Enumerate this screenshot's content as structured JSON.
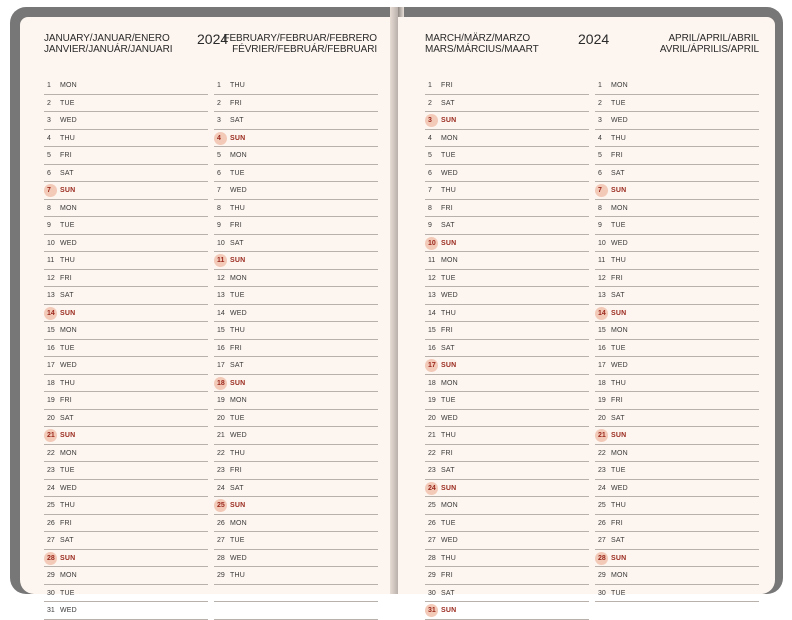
{
  "left_page": {
    "month_labels_left": [
      "JANUARY/JANUAR/ENERO",
      "JANVIER/JANUÁR/JANUARI"
    ],
    "year": "2024",
    "month_labels_right": [
      "FEBRUARY/FEBRUAR/FEBRERO",
      "FÉVRIER/FEBRUÁR/FEBRUARI"
    ],
    "columns": [
      {
        "month": "January",
        "days": [
          {
            "n": "1",
            "d": "MON"
          },
          {
            "n": "2",
            "d": "TUE"
          },
          {
            "n": "3",
            "d": "WED"
          },
          {
            "n": "4",
            "d": "THU"
          },
          {
            "n": "5",
            "d": "FRI"
          },
          {
            "n": "6",
            "d": "SAT"
          },
          {
            "n": "7",
            "d": "SUN"
          },
          {
            "n": "8",
            "d": "MON"
          },
          {
            "n": "9",
            "d": "TUE"
          },
          {
            "n": "10",
            "d": "WED"
          },
          {
            "n": "11",
            "d": "THU"
          },
          {
            "n": "12",
            "d": "FRI"
          },
          {
            "n": "13",
            "d": "SAT"
          },
          {
            "n": "14",
            "d": "SUN"
          },
          {
            "n": "15",
            "d": "MON"
          },
          {
            "n": "16",
            "d": "TUE"
          },
          {
            "n": "17",
            "d": "WED"
          },
          {
            "n": "18",
            "d": "THU"
          },
          {
            "n": "19",
            "d": "FRI"
          },
          {
            "n": "20",
            "d": "SAT"
          },
          {
            "n": "21",
            "d": "SUN"
          },
          {
            "n": "22",
            "d": "MON"
          },
          {
            "n": "23",
            "d": "TUE"
          },
          {
            "n": "24",
            "d": "WED"
          },
          {
            "n": "25",
            "d": "THU"
          },
          {
            "n": "26",
            "d": "FRI"
          },
          {
            "n": "27",
            "d": "SAT"
          },
          {
            "n": "28",
            "d": "SUN"
          },
          {
            "n": "29",
            "d": "MON"
          },
          {
            "n": "30",
            "d": "TUE"
          },
          {
            "n": "31",
            "d": "WED"
          }
        ]
      },
      {
        "month": "February",
        "days": [
          {
            "n": "1",
            "d": "THU"
          },
          {
            "n": "2",
            "d": "FRI"
          },
          {
            "n": "3",
            "d": "SAT"
          },
          {
            "n": "4",
            "d": "SUN"
          },
          {
            "n": "5",
            "d": "MON"
          },
          {
            "n": "6",
            "d": "TUE"
          },
          {
            "n": "7",
            "d": "WED"
          },
          {
            "n": "8",
            "d": "THU"
          },
          {
            "n": "9",
            "d": "FRI"
          },
          {
            "n": "10",
            "d": "SAT"
          },
          {
            "n": "11",
            "d": "SUN"
          },
          {
            "n": "12",
            "d": "MON"
          },
          {
            "n": "13",
            "d": "TUE"
          },
          {
            "n": "14",
            "d": "WED"
          },
          {
            "n": "15",
            "d": "THU"
          },
          {
            "n": "16",
            "d": "FRI"
          },
          {
            "n": "17",
            "d": "SAT"
          },
          {
            "n": "18",
            "d": "SUN"
          },
          {
            "n": "19",
            "d": "MON"
          },
          {
            "n": "20",
            "d": "TUE"
          },
          {
            "n": "21",
            "d": "WED"
          },
          {
            "n": "22",
            "d": "THU"
          },
          {
            "n": "23",
            "d": "FRI"
          },
          {
            "n": "24",
            "d": "SAT"
          },
          {
            "n": "25",
            "d": "SUN"
          },
          {
            "n": "26",
            "d": "MON"
          },
          {
            "n": "27",
            "d": "TUE"
          },
          {
            "n": "28",
            "d": "WED"
          },
          {
            "n": "29",
            "d": "THU"
          },
          {
            "n": "",
            "d": ""
          },
          {
            "n": "",
            "d": ""
          }
        ]
      }
    ]
  },
  "right_page": {
    "month_labels_left": [
      "MARCH/MÄRZ/MARZO",
      "MARS/MÁRCIUS/MAART"
    ],
    "year": "2024",
    "month_labels_right": [
      "APRIL/APRIL/ABRIL",
      "AVRIL/ÁPRILIS/APRIL"
    ],
    "columns": [
      {
        "month": "March",
        "days": [
          {
            "n": "1",
            "d": "FRI"
          },
          {
            "n": "2",
            "d": "SAT"
          },
          {
            "n": "3",
            "d": "SUN"
          },
          {
            "n": "4",
            "d": "MON"
          },
          {
            "n": "5",
            "d": "TUE"
          },
          {
            "n": "6",
            "d": "WED"
          },
          {
            "n": "7",
            "d": "THU"
          },
          {
            "n": "8",
            "d": "FRI"
          },
          {
            "n": "9",
            "d": "SAT"
          },
          {
            "n": "10",
            "d": "SUN"
          },
          {
            "n": "11",
            "d": "MON"
          },
          {
            "n": "12",
            "d": "TUE"
          },
          {
            "n": "13",
            "d": "WED"
          },
          {
            "n": "14",
            "d": "THU"
          },
          {
            "n": "15",
            "d": "FRI"
          },
          {
            "n": "16",
            "d": "SAT"
          },
          {
            "n": "17",
            "d": "SUN"
          },
          {
            "n": "18",
            "d": "MON"
          },
          {
            "n": "19",
            "d": "TUE"
          },
          {
            "n": "20",
            "d": "WED"
          },
          {
            "n": "21",
            "d": "THU"
          },
          {
            "n": "22",
            "d": "FRI"
          },
          {
            "n": "23",
            "d": "SAT"
          },
          {
            "n": "24",
            "d": "SUN"
          },
          {
            "n": "25",
            "d": "MON"
          },
          {
            "n": "26",
            "d": "TUE"
          },
          {
            "n": "27",
            "d": "WED"
          },
          {
            "n": "28",
            "d": "THU"
          },
          {
            "n": "29",
            "d": "FRI"
          },
          {
            "n": "30",
            "d": "SAT"
          },
          {
            "n": "31",
            "d": "SUN"
          }
        ]
      },
      {
        "month": "April",
        "days": [
          {
            "n": "1",
            "d": "MON"
          },
          {
            "n": "2",
            "d": "TUE"
          },
          {
            "n": "3",
            "d": "WED"
          },
          {
            "n": "4",
            "d": "THU"
          },
          {
            "n": "5",
            "d": "FRI"
          },
          {
            "n": "6",
            "d": "SAT"
          },
          {
            "n": "7",
            "d": "SUN"
          },
          {
            "n": "8",
            "d": "MON"
          },
          {
            "n": "9",
            "d": "TUE"
          },
          {
            "n": "10",
            "d": "WED"
          },
          {
            "n": "11",
            "d": "THU"
          },
          {
            "n": "12",
            "d": "FRI"
          },
          {
            "n": "13",
            "d": "SAT"
          },
          {
            "n": "14",
            "d": "SUN"
          },
          {
            "n": "15",
            "d": "MON"
          },
          {
            "n": "16",
            "d": "TUE"
          },
          {
            "n": "17",
            "d": "WED"
          },
          {
            "n": "18",
            "d": "THU"
          },
          {
            "n": "19",
            "d": "FRI"
          },
          {
            "n": "20",
            "d": "SAT"
          },
          {
            "n": "21",
            "d": "SUN"
          },
          {
            "n": "22",
            "d": "MON"
          },
          {
            "n": "23",
            "d": "TUE"
          },
          {
            "n": "24",
            "d": "WED"
          },
          {
            "n": "25",
            "d": "THU"
          },
          {
            "n": "26",
            "d": "FRI"
          },
          {
            "n": "27",
            "d": "SAT"
          },
          {
            "n": "28",
            "d": "SUN"
          },
          {
            "n": "29",
            "d": "MON"
          },
          {
            "n": "30",
            "d": "TUE"
          }
        ]
      }
    ]
  },
  "colors": {
    "page_bg": "#fdf5ef",
    "sunday_text": "#9a2a1e",
    "sunday_badge": "#f3c9b8",
    "rule_line": "#b7b0ab"
  }
}
